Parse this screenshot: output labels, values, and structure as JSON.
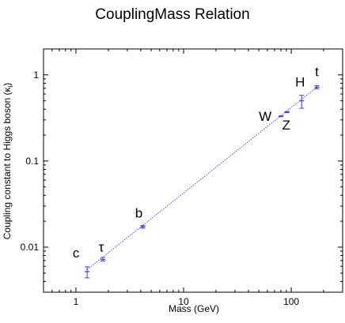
{
  "chart_data": {
    "type": "scatter",
    "title": "CouplingMass Relation",
    "xlabel": "Mass (GeV)",
    "ylabel": "Coupling constant to Higgs boson (κ",
    "ylabel_subscript": "i",
    "ylabel_close": ")",
    "x_scale": "log",
    "y_scale": "log",
    "xlim": [
      0.5,
      300
    ],
    "ylim": [
      0.003,
      2
    ],
    "x_ticks": [
      {
        "value": 1,
        "label": "1"
      },
      {
        "value": 10,
        "label": "10"
      },
      {
        "value": 100,
        "label": "100"
      }
    ],
    "y_ticks": [
      {
        "value": 0.01,
        "label": "0.01"
      },
      {
        "value": 0.1,
        "label": "0.1"
      },
      {
        "value": 1,
        "label": "1"
      }
    ],
    "grid": false,
    "marker_color": "#3a3aff",
    "fit_line": {
      "style": "dotted",
      "color": "#3a3aff",
      "x": [
        1.27,
        173
      ],
      "y": [
        0.0055,
        0.72
      ]
    },
    "points": [
      {
        "label": "c",
        "x": 1.27,
        "y": 0.0052,
        "y_low": 0.0044,
        "y_high": 0.0059
      },
      {
        "label": "τ",
        "x": 1.78,
        "y": 0.0072,
        "y_low": 0.0069,
        "y_high": 0.0076
      },
      {
        "label": "b",
        "x": 4.18,
        "y": 0.0172,
        "y_low": 0.0166,
        "y_high": 0.0178
      },
      {
        "label": "W",
        "x": 80.4,
        "y": 0.331,
        "y_low": 0.327,
        "y_high": 0.335
      },
      {
        "label": "Z",
        "x": 91.2,
        "y": 0.37,
        "y_low": 0.365,
        "y_high": 0.375
      },
      {
        "label": "H",
        "x": 125,
        "y": 0.5,
        "y_low": 0.41,
        "y_high": 0.58
      },
      {
        "label": "t",
        "x": 173,
        "y": 0.72,
        "y_low": 0.69,
        "y_high": 0.75
      }
    ]
  }
}
